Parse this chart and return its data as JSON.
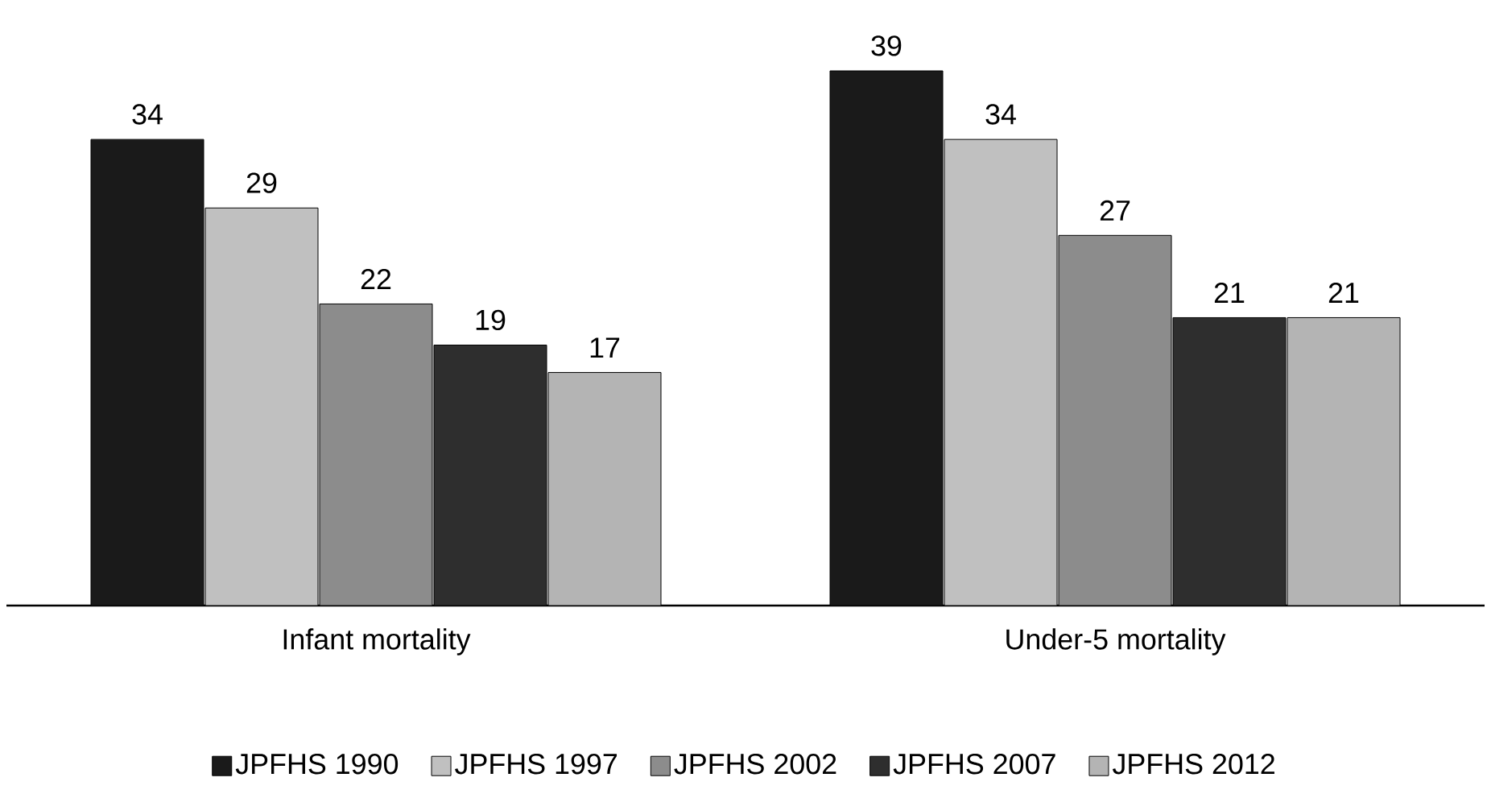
{
  "chart_data": {
    "type": "bar",
    "categories": [
      "Infant mortality",
      "Under-5 mortality"
    ],
    "series": [
      {
        "name": "JPFHS 1990",
        "color": "#1a1a1a",
        "values": [
          34,
          39
        ]
      },
      {
        "name": "JPFHS 1997",
        "color": "#c0c0c0",
        "values": [
          29,
          34
        ]
      },
      {
        "name": "JPFHS 2002",
        "color": "#8c8c8c",
        "values": [
          22,
          27
        ]
      },
      {
        "name": "JPFHS 2007",
        "color": "#2e2e2e",
        "values": [
          19,
          21
        ]
      },
      {
        "name": "JPFHS 2012",
        "color": "#b4b4b4",
        "values": [
          17,
          21
        ]
      }
    ],
    "data_labels": true,
    "legend": "bottom"
  }
}
